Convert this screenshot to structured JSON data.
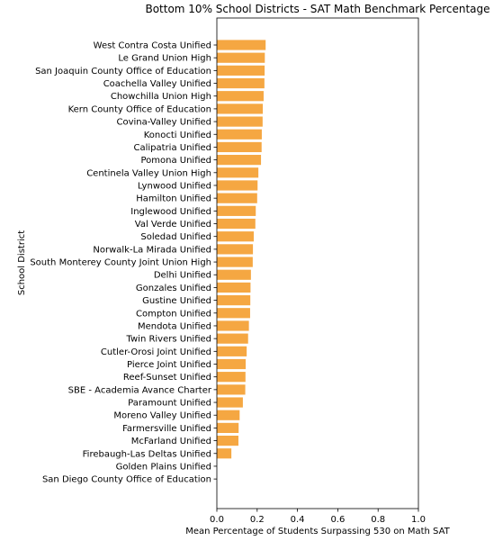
{
  "chart_data": {
    "type": "bar",
    "orientation": "horizontal",
    "title": "Bottom 10% School Districts - SAT Math Benchmark Percentage",
    "xlabel": "Mean Percentage of Students Surpassing 530 on Math SAT",
    "ylabel": "School District",
    "xlim": [
      0,
      1.0
    ],
    "xticks": [
      "0.0",
      "0.2",
      "0.4",
      "0.6",
      "0.8",
      "1.0"
    ],
    "grid": false,
    "bar_color": "#f5a742",
    "categories": [
      "West Contra Costa Unified",
      "Le Grand Union High",
      "San Joaquin County Office of Education",
      "Coachella Valley Unified",
      "Chowchilla Union High",
      "Kern County Office of Education",
      "Covina-Valley Unified",
      "Konocti Unified",
      "Calipatria Unified",
      "Pomona Unified",
      "Centinela Valley Union High",
      "Lynwood Unified",
      "Hamilton Unified",
      "Inglewood Unified",
      "Val Verde Unified",
      "Soledad Unified",
      "Norwalk-La Mirada Unified",
      "South Monterey County Joint Union High",
      "Delhi Unified",
      "Gonzales Unified",
      "Gustine Unified",
      "Compton Unified",
      "Mendota Unified",
      "Twin Rivers Unified",
      "Cutler-Orosi Joint Unified",
      "Pierce Joint Unified",
      "Reef-Sunset Unified",
      "SBE - Academia Avance Charter",
      "Paramount Unified",
      "Moreno Valley Unified",
      "Farmersville Unified",
      "McFarland Unified",
      "Firebaugh-Las Deltas Unified",
      "Golden Plains Unified",
      "San Diego County Office of Education"
    ],
    "values": [
      0.242,
      0.238,
      0.237,
      0.236,
      0.232,
      0.228,
      0.227,
      0.223,
      0.222,
      0.219,
      0.206,
      0.202,
      0.2,
      0.193,
      0.191,
      0.183,
      0.179,
      0.178,
      0.169,
      0.167,
      0.166,
      0.165,
      0.159,
      0.155,
      0.148,
      0.143,
      0.142,
      0.141,
      0.129,
      0.113,
      0.108,
      0.107,
      0.072,
      0.0,
      0.0
    ]
  }
}
